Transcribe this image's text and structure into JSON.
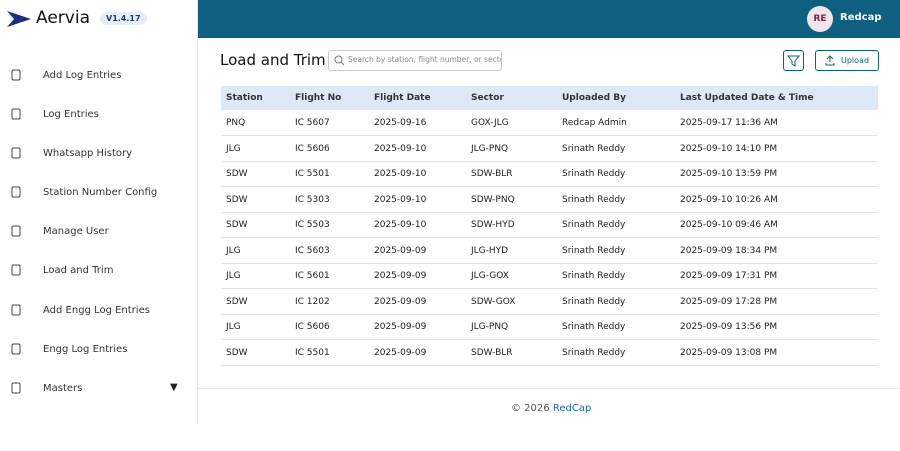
{
  "sidebar": {
    "logo": "Aervia",
    "version": "V1.4.17",
    "items": [
      "Add Log Entries",
      "Log Entries",
      "Whatsapp History",
      "Station Number Config",
      "Manage User",
      "Load and Trim",
      "Add Engg Log Entries",
      "Engg Log Entries",
      "Masters"
    ]
  },
  "topbar": {
    "avatar": "RE",
    "user": "Redcap"
  },
  "page": {
    "title": "Load and Trim",
    "search_placeholder": "Search by station, flight number, or sector",
    "upload": "Upload"
  },
  "table": {
    "columns": [
      "Station",
      "Flight No",
      "Flight Date",
      "Sector",
      "Uploaded By",
      "Last Updated Date & Time"
    ],
    "rows": [
      [
        "PNQ",
        "IC 5607",
        "2025-09-16",
        "GOX-JLG",
        "Redcap Admin",
        "2025-09-17 11:36 AM"
      ],
      [
        "JLG",
        "IC 5606",
        "2025-09-10",
        "JLG-PNQ",
        "Srinath Reddy",
        "2025-09-10 14:10 PM"
      ],
      [
        "SDW",
        "IC 5501",
        "2025-09-10",
        "SDW-BLR",
        "Srinath Reddy",
        "2025-09-10 13:59 PM"
      ],
      [
        "SDW",
        "IC 5303",
        "2025-09-10",
        "SDW-PNQ",
        "Srinath Reddy",
        "2025-09-10 10:26 AM"
      ],
      [
        "SDW",
        "IC 5503",
        "2025-09-10",
        "SDW-HYD",
        "Srinath Reddy",
        "2025-09-10 09:46 AM"
      ],
      [
        "JLG",
        "IC 5603",
        "2025-09-09",
        "JLG-HYD",
        "Srinath Reddy",
        "2025-09-09 18:34 PM"
      ],
      [
        "JLG",
        "IC 5601",
        "2025-09-09",
        "JLG-GOX",
        "Srinath Reddy",
        "2025-09-09 17:31 PM"
      ],
      [
        "SDW",
        "IC 1202",
        "2025-09-09",
        "SDW-GOX",
        "Srinath Reddy",
        "2025-09-09 17:28 PM"
      ],
      [
        "JLG",
        "IC 5606",
        "2025-09-09",
        "JLG-PNQ",
        "Srinath Reddy",
        "2025-09-09 13:56 PM"
      ],
      [
        "SDW",
        "IC 5501",
        "2025-09-09",
        "SDW-BLR",
        "Srinath Reddy",
        "2025-09-09 13:08 PM"
      ]
    ]
  },
  "footer": {
    "copyright": "© 2026",
    "brand": "RedCap"
  }
}
